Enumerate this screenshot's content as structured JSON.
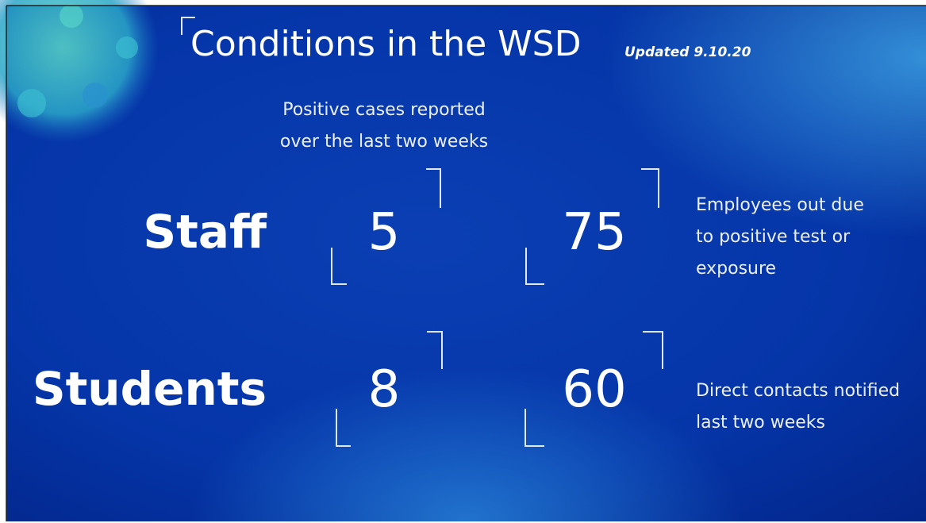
{
  "header": {
    "title": "Conditions in the WSD",
    "updated": "Updated 9.10.20"
  },
  "column_note": {
    "lines": [
      "Positive cases reported",
      "over the last two weeks"
    ]
  },
  "rows": [
    {
      "label": "Staff",
      "positive_cases": 5,
      "other_count": 75,
      "note_lines": [
        "Employees out due",
        "to positive test or",
        "exposure"
      ]
    },
    {
      "label": "Students",
      "positive_cases": 8,
      "other_count": 60,
      "note_lines": [
        "Direct contacts notified",
        "last two weeks"
      ]
    }
  ]
}
